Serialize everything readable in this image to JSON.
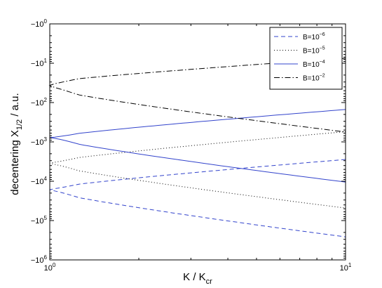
{
  "chart_data": {
    "type": "line",
    "xlabel": {
      "main": "K / K",
      "sub": "cr"
    },
    "ylabel": {
      "main": "decentering X",
      "sub": "1/2",
      "tail": "  /  a.u."
    },
    "x_scale": "log",
    "y_scale": "log-negative",
    "xlim": [
      1,
      10
    ],
    "ylim": [
      -1,
      -1000000
    ],
    "grid": false,
    "legend_position": "top-right",
    "x_ticks": [
      {
        "value": 1,
        "base": "10",
        "exp": "0"
      },
      {
        "value": 10,
        "base": "10",
        "exp": "1"
      }
    ],
    "y_ticks": [
      {
        "value": -1,
        "base": "−10",
        "exp": "0"
      },
      {
        "value": -10,
        "base": "−10",
        "exp": "1"
      },
      {
        "value": -100,
        "base": "−10",
        "exp": "2"
      },
      {
        "value": -1000,
        "base": "−10",
        "exp": "3"
      },
      {
        "value": -10000,
        "base": "−10",
        "exp": "4"
      },
      {
        "value": -100000,
        "base": "−10",
        "exp": "5"
      },
      {
        "value": -1000000,
        "base": "−10",
        "exp": "6"
      }
    ],
    "series": [
      {
        "legend_base": "B=10",
        "legend_exp": "−6",
        "color": "#3344cc",
        "dash": "6,4",
        "x": [
          1,
          10,
          1,
          10
        ],
        "upper": {
          "x": [
            1,
            10
          ],
          "y": [
            -15000,
            -2800
          ]
        },
        "lower": {
          "x": [
            1,
            10
          ],
          "y": [
            -18000,
            -260000
          ]
        }
      },
      {
        "legend_base": "B=10",
        "legend_exp": "−5",
        "color": "#000000",
        "dash": "1,3",
        "upper": {
          "x": [
            1,
            10
          ],
          "y": [
            -3200,
            -550
          ]
        },
        "lower": {
          "x": [
            1,
            10
          ],
          "y": [
            -3800,
            -48000
          ]
        }
      },
      {
        "legend_base": "B=10",
        "legend_exp": "−4",
        "color": "#3344cc",
        "dash": "",
        "upper": {
          "x": [
            1,
            10
          ],
          "y": [
            -760,
            -150
          ]
        },
        "lower": {
          "x": [
            1,
            10
          ],
          "y": [
            -800,
            -10500
          ]
        }
      },
      {
        "legend_base": "B=10",
        "legend_exp": "−2",
        "color": "#000000",
        "dash": "8,3,1.5,3",
        "upper": {
          "x": [
            1,
            10
          ],
          "y": [
            -30,
            -7.5
          ]
        },
        "lower": {
          "x": [
            1,
            10
          ],
          "y": [
            -45,
            -560
          ]
        }
      }
    ]
  }
}
